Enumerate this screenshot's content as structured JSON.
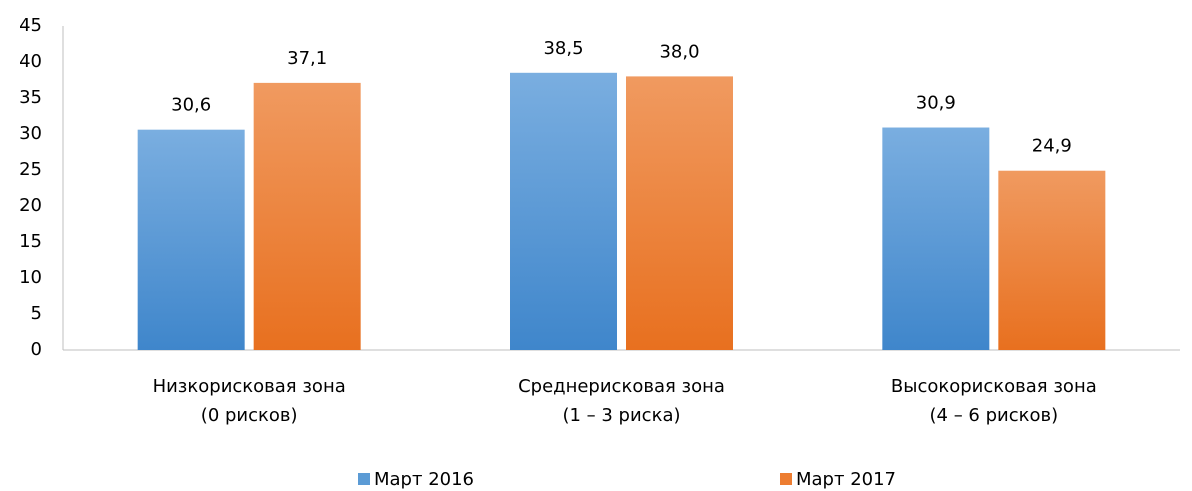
{
  "chart_data": {
    "type": "bar",
    "categories": [
      [
        "Низкорисковая зона",
        "(0 рисков)"
      ],
      [
        "Среднерисковая зона",
        "(1 – 3 риска)"
      ],
      [
        "Высокорисковая зона",
        "(4 – 6 рисков)"
      ]
    ],
    "series": [
      {
        "name": "Март 2016",
        "color": "#5b9bd5",
        "values": [
          30.6,
          38.5,
          30.9
        ],
        "value_labels": [
          "30,6",
          "38,5",
          "30,9"
        ]
      },
      {
        "name": "Март 2017",
        "color": "#ed7d31",
        "values": [
          37.1,
          38.0,
          24.9
        ],
        "value_labels": [
          "37,1",
          "38,0",
          "24,9"
        ]
      }
    ],
    "ylim": [
      0,
      45
    ],
    "yticks": [
      0,
      5,
      10,
      15,
      20,
      25,
      30,
      35,
      40,
      45
    ],
    "grid": false,
    "legend": "bottom"
  }
}
